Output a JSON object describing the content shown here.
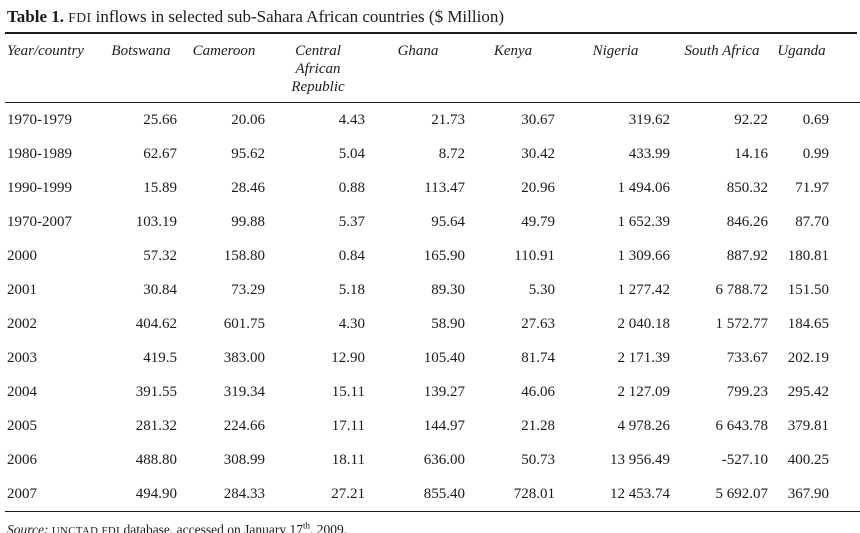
{
  "title": {
    "label": "Table 1. ",
    "acronym": "FDI",
    "rest": " inflows in selected sub-Sahara African countries ($ Million)"
  },
  "table": {
    "columns": [
      "Year/country",
      "Botswana",
      "Cameroon",
      "Central African Republic",
      "Ghana",
      "Kenya",
      "Nigeria",
      "South Africa",
      "Uganda"
    ],
    "rows": [
      {
        "year": "1970-1979",
        "values": [
          "25.66",
          "20.06",
          "4.43",
          "21.73",
          "30.67",
          "319.62",
          "92.22",
          "0.69"
        ]
      },
      {
        "year": "1980-1989",
        "values": [
          "62.67",
          "95.62",
          "5.04",
          "8.72",
          "30.42",
          "433.99",
          "14.16",
          "0.99"
        ]
      },
      {
        "year": "1990-1999",
        "values": [
          "15.89",
          "28.46",
          "0.88",
          "113.47",
          "20.96",
          "1 494.06",
          "850.32",
          "71.97"
        ]
      },
      {
        "year": "1970-2007",
        "values": [
          "103.19",
          "99.88",
          "5.37",
          "95.64",
          "49.79",
          "1 652.39",
          "846.26",
          "87.70"
        ]
      },
      {
        "year": "2000",
        "values": [
          "57.32",
          "158.80",
          "0.84",
          "165.90",
          "110.91",
          "1 309.66",
          "887.92",
          "180.81"
        ]
      },
      {
        "year": "2001",
        "values": [
          "30.84",
          "73.29",
          "5.18",
          "89.30",
          "5.30",
          "1 277.42",
          "6 788.72",
          "151.50"
        ]
      },
      {
        "year": "2002",
        "values": [
          "404.62",
          "601.75",
          "4.30",
          "58.90",
          "27.63",
          "2 040.18",
          "1 572.77",
          "184.65"
        ]
      },
      {
        "year": "2003",
        "values": [
          "419.5",
          "383.00",
          "12.90",
          "105.40",
          "81.74",
          "2 171.39",
          "733.67",
          "202.19"
        ]
      },
      {
        "year": "2004",
        "values": [
          "391.55",
          "319.34",
          "15.11",
          "139.27",
          "46.06",
          "2 127.09",
          "799.23",
          "295.42"
        ]
      },
      {
        "year": "2005",
        "values": [
          "281.32",
          "224.66",
          "17.11",
          "144.97",
          "21.28",
          "4 978.26",
          "6 643.78",
          "379.81"
        ]
      },
      {
        "year": "2006",
        "values": [
          "488.80",
          "308.99",
          "18.11",
          "636.00",
          "50.73",
          "13 956.49",
          "-527.10",
          "400.25"
        ]
      },
      {
        "year": "2007",
        "values": [
          "494.90",
          "284.33",
          "27.21",
          "855.40",
          "728.01",
          "12 453.74",
          "5 692.07",
          "367.90"
        ]
      }
    ]
  },
  "source": {
    "prefix": "Source: ",
    "acronym": "UNCTAD FDI",
    "mid": " database, accessed on January 17",
    "sup": "th",
    "tail": ", 2009."
  },
  "colors": {
    "text": "#1b1b1b",
    "rule": "#1b1b1b",
    "background": "#ffffff"
  }
}
